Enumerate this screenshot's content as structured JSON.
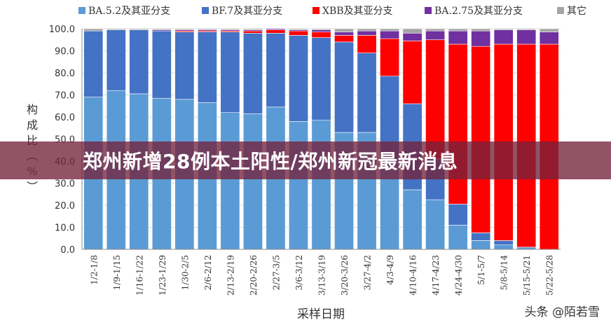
{
  "banner": {
    "title": "郑州新增28例本土阳性/郑州新冠最新消息"
  },
  "watermark": {
    "text": "头条 @陌若雪"
  },
  "chart_data": {
    "type": "bar",
    "stacked": true,
    "title": "",
    "xlabel": "采样日期",
    "ylabel": "构成比（%）",
    "ylim": [
      0,
      100
    ],
    "yticks": [
      "0.0",
      "10.0",
      "20.0",
      "30.0",
      "40.0",
      "50.0",
      "60.0",
      "70.0",
      "80.0",
      "90.0",
      "100.0"
    ],
    "legend_position": "top",
    "categories": [
      "1/2-1/8",
      "1/9-1/15",
      "1/16-1/22",
      "1/23-1/29",
      "1/30-2/5",
      "2/6-2/12",
      "2/13-2/19",
      "2/20-2/26",
      "2/27-3/5",
      "3/6-3/12",
      "3/13-3/19",
      "3/20-3/26",
      "3/27-4/2",
      "4/3-4/9",
      "4/10-4/16",
      "4/17-4/23",
      "4/24-4/30",
      "5/1-5/7",
      "5/8-5/14",
      "5/15-5/21",
      "5/22-5/28"
    ],
    "series": [
      {
        "name": "BA.5.2及其亚分支",
        "color": "#5b9bd5",
        "values": [
          69,
          72,
          70.5,
          68.5,
          68,
          66.5,
          62,
          61.5,
          64.5,
          58,
          58.5,
          53,
          53,
          39,
          27,
          22.5,
          11,
          4,
          2,
          1,
          0
        ]
      },
      {
        "name": "BF.7及其亚分支",
        "color": "#4472c4",
        "values": [
          30,
          27.5,
          29,
          30.5,
          30.5,
          32,
          36.5,
          36.5,
          33.5,
          39,
          37.5,
          41,
          36,
          39.5,
          39,
          18.5,
          9.5,
          3.5,
          2,
          0,
          0
        ]
      },
      {
        "name": "XBB及其亚分支",
        "color": "#ff0000",
        "values": [
          0,
          0,
          0,
          0,
          0.5,
          0.5,
          0.5,
          1,
          1.5,
          2,
          2.5,
          3,
          8,
          17,
          28.5,
          54,
          72.5,
          84.5,
          89,
          92,
          93
        ]
      },
      {
        "name": "BA.2.75及其亚分支",
        "color": "#7030a0",
        "values": [
          0,
          0,
          0,
          0.5,
          0.5,
          0.5,
          0.5,
          0.5,
          0.5,
          0.5,
          1,
          1.5,
          2,
          3.5,
          3.5,
          4,
          6,
          7,
          6.5,
          6.5,
          5.5
        ]
      },
      {
        "name": "其它",
        "color": "#a5a5a5",
        "values": [
          1,
          0.5,
          0.5,
          0.5,
          0.5,
          0.5,
          0.5,
          0.5,
          0,
          0.5,
          0.5,
          1.5,
          1,
          1,
          2,
          1,
          1,
          1,
          0.5,
          0.5,
          1.5
        ]
      }
    ]
  }
}
